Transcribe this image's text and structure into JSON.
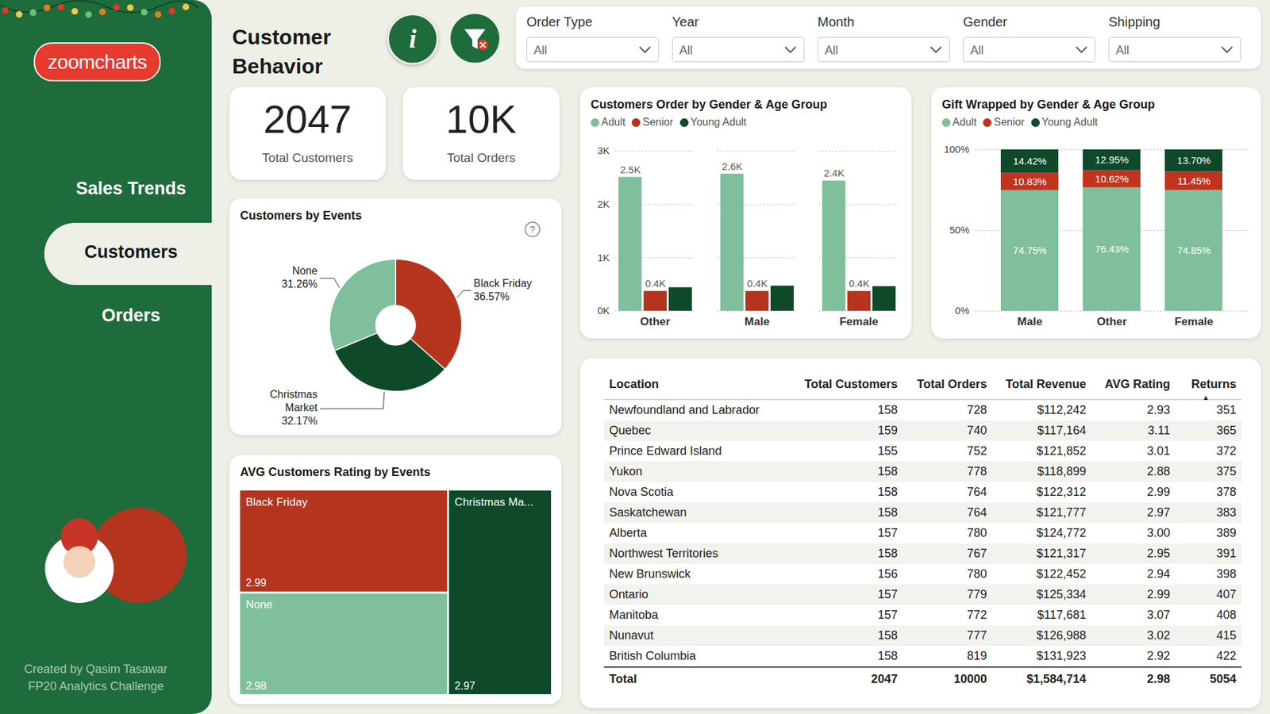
{
  "header": {
    "title": "Customer Behavior"
  },
  "logo": "zoomcharts",
  "icons": {
    "info": "i",
    "help": "?"
  },
  "nav": {
    "items": [
      "Sales Trends",
      "Customers",
      "Orders"
    ],
    "active": "Customers"
  },
  "filters": [
    {
      "label": "Order Type",
      "value": "All"
    },
    {
      "label": "Year",
      "value": "All"
    },
    {
      "label": "Month",
      "value": "All"
    },
    {
      "label": "Gender",
      "value": "All"
    },
    {
      "label": "Shipping",
      "value": "All"
    }
  ],
  "kpis": [
    {
      "value": "2047",
      "label": "Total Customers"
    },
    {
      "value": "10K",
      "label": "Total Orders"
    }
  ],
  "chart_data": [
    {
      "type": "donut",
      "title": "Customers by Events",
      "categories": [
        "Black Friday",
        "Christmas Market",
        "None"
      ],
      "values": [
        36.57,
        32.17,
        31.26
      ],
      "value_labels": [
        "36.57%",
        "32.17%",
        "31.26%"
      ],
      "colors": [
        "#b5341e",
        "#0e4a2a",
        "#7fbf9b"
      ],
      "data_labels": true
    },
    {
      "type": "treemap",
      "title": "AVG Customers Rating by Events",
      "categories": [
        "Black Friday",
        "None",
        "Christmas Ma..."
      ],
      "values": [
        2.99,
        2.98,
        2.97
      ],
      "colors": [
        "#b5341e",
        "#7fbf9b",
        "#0e4a2a"
      ],
      "data_labels": true
    },
    {
      "type": "bar",
      "title": "Customers Order by Gender & Age Group",
      "categories": [
        "Other",
        "Male",
        "Female"
      ],
      "series": [
        {
          "name": "Adult",
          "color": "#7fbf9b",
          "values": [
            2510,
            2570,
            2440
          ],
          "value_labels": [
            "2.5K",
            "2.6K",
            "2.4K"
          ]
        },
        {
          "name": "Senior",
          "color": "#b5341e",
          "values": [
            370,
            370,
            370
          ],
          "value_labels": [
            "0.4K",
            "0.4K",
            "0.4K"
          ]
        },
        {
          "name": "Young Adult",
          "color": "#0e4a2a",
          "values": [
            440,
            470,
            460
          ]
        }
      ],
      "ylim": [
        0,
        3000
      ],
      "yticks": [
        {
          "value": 0,
          "label": "0K"
        },
        {
          "value": 1000,
          "label": "1K"
        },
        {
          "value": 2000,
          "label": "2K"
        },
        {
          "value": 3000,
          "label": "3K"
        }
      ],
      "grid": true,
      "legend": "top-left",
      "data_labels": true
    },
    {
      "type": "bar",
      "stacked": true,
      "title": "Gift Wrapped by Gender & Age Group",
      "categories": [
        "Male",
        "Other",
        "Female"
      ],
      "series": [
        {
          "name": "Adult",
          "color": "#7fbf9b",
          "values": [
            74.75,
            76.43,
            74.85
          ],
          "value_labels": [
            "74.75%",
            "76.43%",
            "74.85%"
          ]
        },
        {
          "name": "Senior",
          "color": "#c0341f",
          "values": [
            10.83,
            10.62,
            11.45
          ],
          "value_labels": [
            "10.83%",
            "10.62%",
            "11.45%"
          ]
        },
        {
          "name": "Young Adult",
          "color": "#0e4a2a",
          "values": [
            14.42,
            12.95,
            13.7
          ],
          "value_labels": [
            "14.42%",
            "12.95%",
            "13.70%"
          ]
        }
      ],
      "ylim": [
        0,
        100
      ],
      "yticks": [
        {
          "value": 0,
          "label": "0%"
        },
        {
          "value": 50,
          "label": "50%"
        },
        {
          "value": 100,
          "label": "100%"
        }
      ],
      "grid": true,
      "legend": "top-left",
      "data_labels": true
    }
  ],
  "table": {
    "columns": [
      "Location",
      "Total Customers",
      "Total Orders",
      "Total Revenue",
      "AVG Rating",
      "Returns"
    ],
    "sort": {
      "column": "Returns",
      "indicator": "▲"
    },
    "rows": [
      [
        "Newfoundland and Labrador",
        "158",
        "728",
        "$112,242",
        "2.93",
        "351"
      ],
      [
        "Quebec",
        "159",
        "740",
        "$117,164",
        "3.11",
        "365"
      ],
      [
        "Prince Edward Island",
        "155",
        "752",
        "$121,852",
        "3.01",
        "372"
      ],
      [
        "Yukon",
        "158",
        "778",
        "$118,899",
        "2.88",
        "375"
      ],
      [
        "Nova Scotia",
        "158",
        "764",
        "$122,312",
        "2.99",
        "378"
      ],
      [
        "Saskatchewan",
        "158",
        "764",
        "$121,777",
        "2.97",
        "383"
      ],
      [
        "Alberta",
        "157",
        "780",
        "$124,772",
        "3.00",
        "389"
      ],
      [
        "Northwest Territories",
        "158",
        "767",
        "$121,317",
        "2.95",
        "391"
      ],
      [
        "New Brunswick",
        "156",
        "780",
        "$122,452",
        "2.94",
        "398"
      ],
      [
        "Ontario",
        "157",
        "779",
        "$125,334",
        "2.99",
        "407"
      ],
      [
        "Manitoba",
        "157",
        "772",
        "$117,681",
        "3.07",
        "408"
      ],
      [
        "Nunavut",
        "158",
        "777",
        "$126,988",
        "3.02",
        "415"
      ],
      [
        "British Columbia",
        "158",
        "819",
        "$131,923",
        "2.92",
        "422"
      ]
    ],
    "total": [
      "Total",
      "2047",
      "10000",
      "$1,584,714",
      "2.98",
      "5054"
    ]
  },
  "footer": [
    "Created by Qasim Tasawar",
    "FP20 Analytics Challenge"
  ]
}
